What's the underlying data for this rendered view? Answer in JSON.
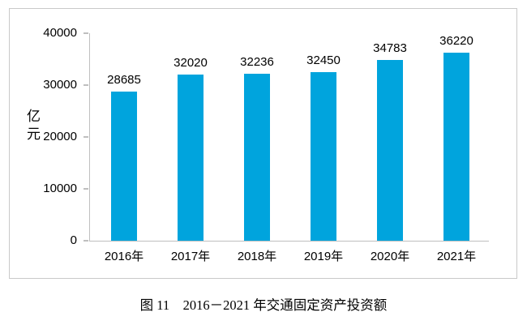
{
  "chart_data": {
    "type": "bar",
    "title": "",
    "categories": [
      "2016年",
      "2017年",
      "2018年",
      "2019年",
      "2020年",
      "2021年"
    ],
    "values": [
      28685,
      32020,
      32236,
      32450,
      34783,
      36220
    ],
    "value_labels": [
      "28685",
      "32020",
      "32236",
      "32450",
      "34783",
      "36220"
    ],
    "ylabel": "亿元",
    "xlabel": "",
    "yticks": [
      "0",
      "10000",
      "20000",
      "30000",
      "40000"
    ],
    "ytick_values": [
      0,
      10000,
      20000,
      30000,
      40000
    ],
    "ylim": [
      0,
      40000
    ],
    "grid": false,
    "legend_position": "none",
    "bar_color": "#00a4dd",
    "axis_color": "#bfbfbf",
    "frame_border_color": "#c9c9c9",
    "label_color": "#000000"
  },
  "caption": "图 11　2016－2021 年交通固定资产投资额"
}
